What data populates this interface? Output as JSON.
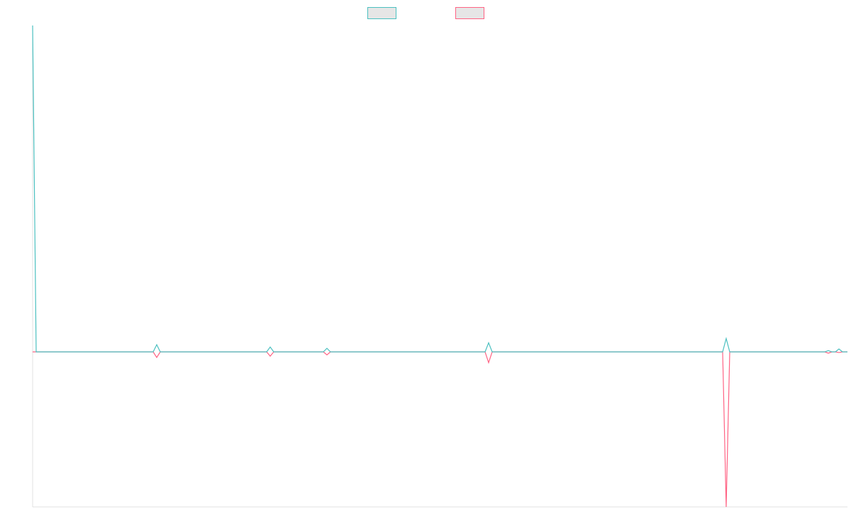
{
  "chart_data": {
    "type": "line",
    "x": [
      0,
      1,
      34,
      35,
      36,
      66,
      67,
      68,
      82,
      83,
      84,
      127.6,
      128.6,
      129.6,
      194.6,
      195.6,
      196.6,
      223.4,
      224.4,
      225.4,
      226.4,
      227.4,
      228.4,
      229.8
    ],
    "series": [
      {
        "color": "#4bc0c0",
        "values": [
          100,
          0,
          0,
          2.2,
          0,
          0,
          1.5,
          0,
          0,
          1.1,
          0,
          0,
          2.8,
          0,
          0,
          4.1,
          0,
          0,
          0.4,
          0,
          0,
          0.9,
          0,
          0
        ]
      },
      {
        "color": "#ff6384",
        "values": [
          0,
          0,
          0,
          -1.7,
          0,
          0,
          -1.3,
          0,
          0,
          -0.9,
          0,
          0,
          -3.3,
          0,
          0,
          -47.5,
          0,
          0,
          -0.4,
          0,
          0,
          -0.2,
          0,
          0
        ]
      }
    ],
    "xlim": [
      0,
      229.8
    ],
    "ylim": [
      -47.5,
      100
    ],
    "legend": "top"
  }
}
